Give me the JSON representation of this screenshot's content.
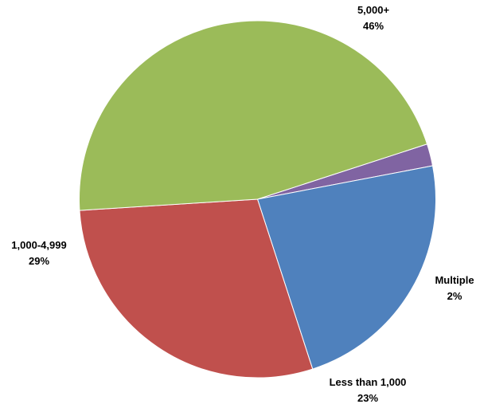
{
  "chart_data": {
    "type": "pie",
    "title": "",
    "start_angle_deg": 72,
    "direction": "clockwise",
    "slices": [
      {
        "label": "Multiple",
        "value": 2,
        "value_label": "2%",
        "color": "#8064A2"
      },
      {
        "label": "Less than 1,000",
        "value": 23,
        "value_label": "23%",
        "color": "#4F81BD"
      },
      {
        "label": "1,000-4,999",
        "value": 29,
        "value_label": "29%",
        "color": "#C0504D"
      },
      {
        "label": "5,000+",
        "value": 46,
        "value_label": "46%",
        "color": "#9BBB59"
      }
    ]
  }
}
